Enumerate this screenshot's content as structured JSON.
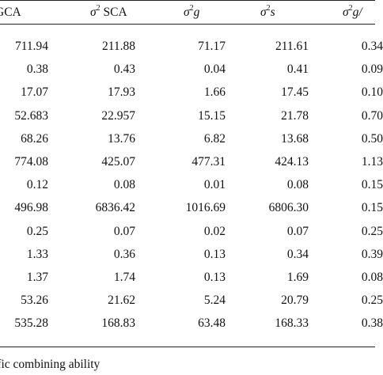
{
  "table": {
    "headers": [
      {
        "text": "GCA"
      },
      {
        "symbol": "σ",
        "sup": "2",
        "suffix": " SCA"
      },
      {
        "symbol": "σ",
        "sup": "2",
        "suffix": "g"
      },
      {
        "symbol": "σ",
        "sup": "2",
        "suffix": "s"
      },
      {
        "symbol": "σ",
        "sup": "2",
        "suffix": "g/"
      }
    ],
    "rows": [
      [
        "711.94",
        "211.88",
        "71.17",
        "211.61",
        "0.34"
      ],
      [
        "0.38",
        "0.43",
        "0.04",
        "0.41",
        "0.09"
      ],
      [
        "17.07",
        "17.93",
        "1.66",
        "17.45",
        "0.10"
      ],
      [
        "52.683",
        "22.957",
        "15.15",
        "21.78",
        "0.70"
      ],
      [
        "68.26",
        "13.76",
        "6.82",
        "13.68",
        "0.50"
      ],
      [
        "774.08",
        "425.07",
        "477.31",
        "424.13",
        "1.13"
      ],
      [
        "0.12",
        "0.08",
        "0.01",
        "0.08",
        "0.15"
      ],
      [
        "496.98",
        "6836.42",
        "1016.69",
        "6806.30",
        "0.15"
      ],
      [
        "0.25",
        "0.07",
        "0.02",
        "0.07",
        "0.25"
      ],
      [
        "1.33",
        "0.36",
        "0.13",
        "0.34",
        "0.39"
      ],
      [
        "1.37",
        "1.74",
        "0.13",
        "1.69",
        "0.08"
      ],
      [
        "53.26",
        "21.62",
        "5.24",
        "20.79",
        "0.25"
      ],
      [
        "535.28",
        "168.83",
        "63.48",
        "168.33",
        "0.38"
      ]
    ]
  },
  "footnote": "ific combining ability"
}
